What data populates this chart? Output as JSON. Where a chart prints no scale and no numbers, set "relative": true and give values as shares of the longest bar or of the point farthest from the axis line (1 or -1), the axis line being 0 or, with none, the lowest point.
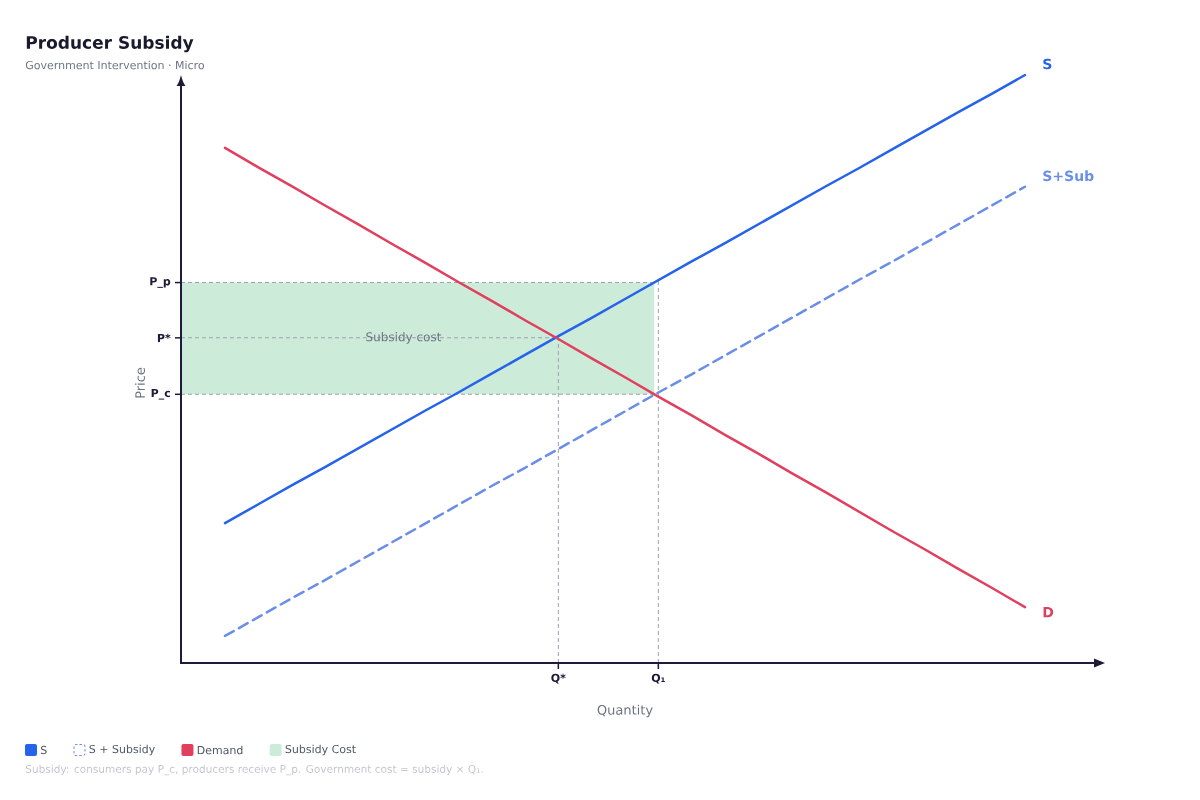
{
  "chart_data": {
    "type": "line",
    "title": "Producer Subsidy",
    "subtitle": "Government Intervention · Micro",
    "xlabel": "Quantity",
    "ylabel": "Price",
    "relative": true,
    "categories": [
      null,
      null,
      null,
      null,
      null,
      null,
      null,
      null,
      null,
      null,
      "Q*",
      null,
      null,
      "Q₁",
      null,
      null,
      null,
      null,
      null,
      null,
      null,
      null,
      null,
      null,
      null
    ],
    "series": [
      {
        "name": "S",
        "color": "#2563eb",
        "values": [
          0.238,
          0.27,
          0.302,
          0.333,
          0.365,
          0.397,
          0.429,
          0.46,
          0.492,
          0.524,
          0.556,
          0.587,
          0.619,
          0.651,
          0.683,
          0.714,
          0.746,
          0.778,
          0.81,
          0.841,
          0.873,
          0.905,
          0.937,
          0.968,
          1.0
        ]
      },
      {
        "name": "S + Subsidy",
        "color": "#6a8ee8",
        "line_style": "dashed",
        "values": [
          0.046,
          0.078,
          0.11,
          0.141,
          0.173,
          0.205,
          0.237,
          0.269,
          0.301,
          0.332,
          0.364,
          0.396,
          0.428,
          0.46,
          0.491,
          0.523,
          0.555,
          0.587,
          0.619,
          0.651,
          0.682,
          0.714,
          0.746,
          0.778,
          0.81
        ]
      },
      {
        "name": "Demand",
        "color": "#e0405e",
        "values": [
          0.876,
          0.843,
          0.811,
          0.778,
          0.746,
          0.713,
          0.681,
          0.648,
          0.616,
          0.583,
          0.551,
          0.518,
          0.486,
          0.453,
          0.421,
          0.388,
          0.356,
          0.323,
          0.291,
          0.258,
          0.225,
          0.193,
          0.16,
          0.128,
          0.095
        ]
      }
    ],
    "ref_lines": [
      {
        "axis": "y",
        "value": 0.647,
        "label": "P_p",
        "color": "#9ca3af",
        "line_style": "dashed"
      },
      {
        "axis": "y",
        "value": 0.553,
        "label": "P*",
        "color": "#9ca3af",
        "line_style": "dashed"
      },
      {
        "axis": "y",
        "value": 0.457,
        "label": "P_c",
        "color": "#9ca3af",
        "line_style": "dashed"
      },
      {
        "axis": "x",
        "value": "Q*",
        "color": "#9ca3af",
        "line_style": "dashed"
      },
      {
        "axis": "x",
        "value": "Q₁",
        "color": "#9ca3af",
        "line_style": "dashed"
      }
    ],
    "bands": [
      {
        "axis": "y",
        "from": 0.457,
        "to": 0.647,
        "label": "Subsidy Cost",
        "color": "#cdebd9"
      }
    ],
    "annotations": [
      "S",
      "S+Sub",
      "D",
      {
        "text": "Subsidy cost",
        "y": 0.553
      },
      "Subsidy: consumers pay P_c, producers receive P_p. Government cost = subsidy × Q₁."
    ],
    "legend": "bottom",
    "line_style": "solid"
  }
}
